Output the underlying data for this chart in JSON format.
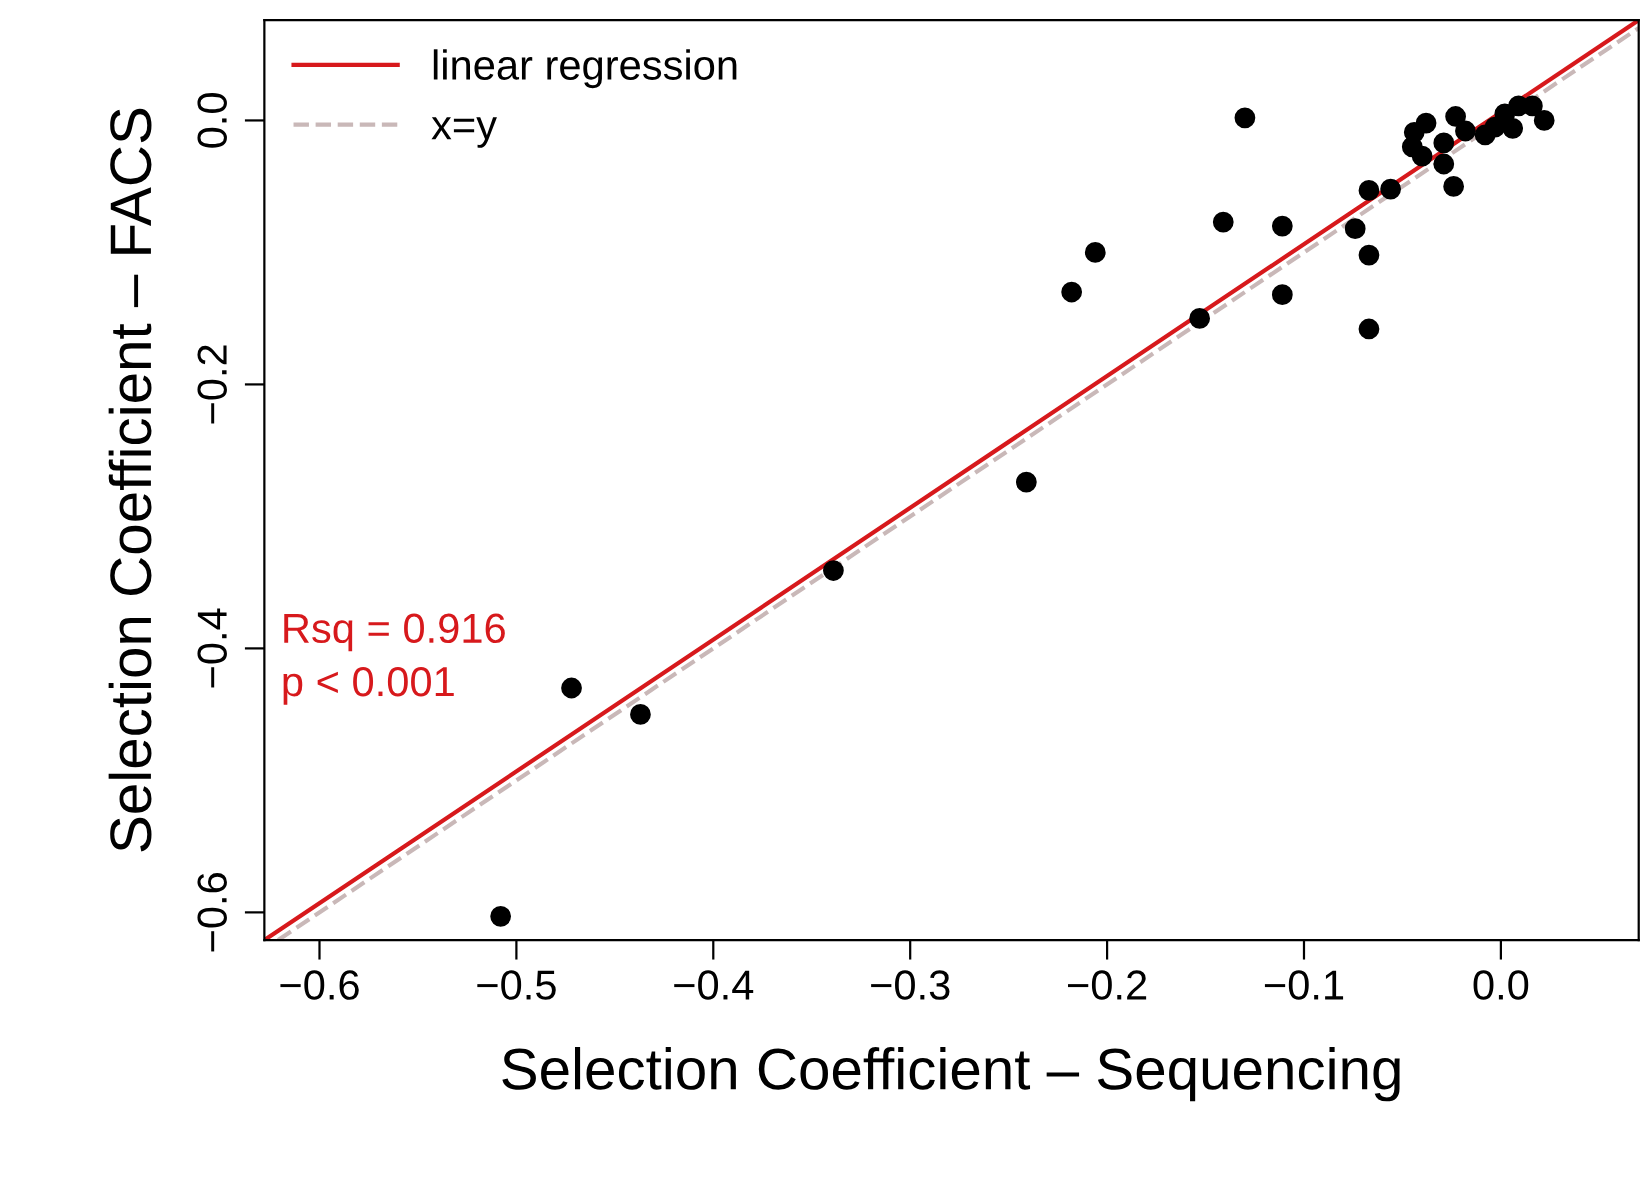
{
  "chart_data": {
    "type": "scatter",
    "xlabel": "Selection Coefficient – Sequencing",
    "ylabel": "Selection Coefficient – FACS",
    "xlim": [
      -0.628,
      0.07
    ],
    "ylim": [
      -0.621,
      0.076
    ],
    "xticks": [
      {
        "value": -0.6,
        "label": "−0.6"
      },
      {
        "value": -0.5,
        "label": "−0.5"
      },
      {
        "value": -0.4,
        "label": "−0.4"
      },
      {
        "value": -0.3,
        "label": "−0.3"
      },
      {
        "value": -0.2,
        "label": "−0.2"
      },
      {
        "value": -0.1,
        "label": "−0.1"
      },
      {
        "value": 0.0,
        "label": "0.0"
      }
    ],
    "yticks": [
      {
        "value": -0.6,
        "label": "−0.6"
      },
      {
        "value": -0.4,
        "label": "−0.4"
      },
      {
        "value": -0.2,
        "label": "−0.2"
      },
      {
        "value": 0.0,
        "label": "0.0"
      }
    ],
    "grid": false,
    "legend": "top left",
    "annotations": [
      "Rsq = 0.916",
      "p < 0.001"
    ],
    "series": [
      {
        "marker": "circle",
        "color": "#000000",
        "x": [
          -0.508,
          -0.472,
          -0.437,
          -0.339,
          -0.241,
          -0.218,
          -0.206,
          -0.153,
          -0.141,
          -0.13,
          -0.111,
          -0.111,
          -0.067,
          -0.056,
          -0.074,
          -0.067,
          -0.067,
          -0.024,
          -0.044,
          -0.038,
          -0.045,
          -0.04,
          -0.029,
          -0.029,
          -0.023,
          -0.018,
          -0.008,
          -0.003,
          0.006,
          0.002,
          0.009,
          0.016,
          0.022
        ],
        "values": [
          -0.603,
          -0.43,
          -0.45,
          -0.341,
          -0.274,
          -0.13,
          -0.1,
          -0.15,
          -0.077,
          0.002,
          -0.08,
          -0.132,
          -0.053,
          -0.052,
          -0.082,
          -0.102,
          -0.158,
          -0.05,
          -0.009,
          -0.002,
          -0.02,
          -0.027,
          -0.017,
          -0.033,
          0.003,
          -0.008,
          -0.011,
          -0.005,
          -0.006,
          0.005,
          0.011,
          0.011,
          0.0
        ]
      },
      {
        "type": "line",
        "name": "linear regression",
        "color": "#d7191c",
        "line_style": "solid",
        "x": [
          -0.628,
          0.07
        ],
        "values": [
          -0.621,
          0.076
        ]
      },
      {
        "type": "line",
        "name": "x=y",
        "color": "#c9b8b8",
        "line_style": "dashed",
        "x": [
          -0.621,
          0.07
        ],
        "values": [
          -0.621,
          0.07
        ]
      }
    ]
  }
}
